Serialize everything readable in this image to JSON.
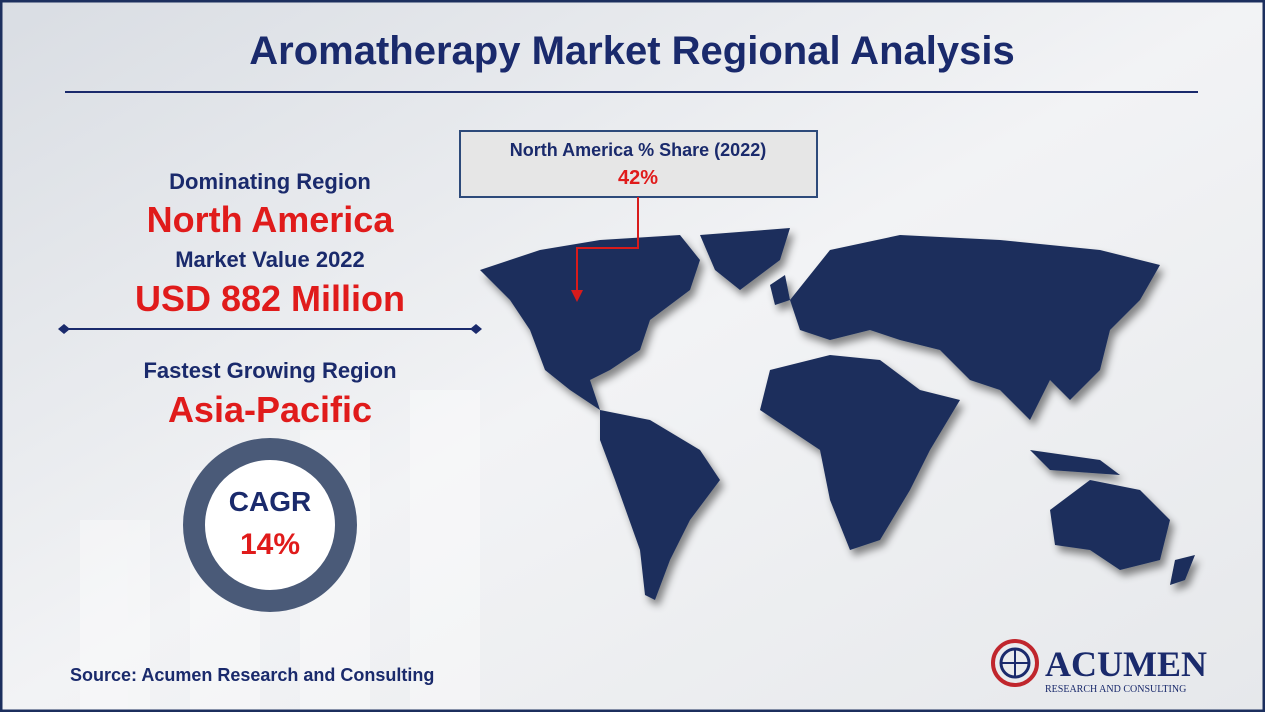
{
  "header": {
    "title": "Aromatherapy Market Regional Analysis"
  },
  "callout": {
    "label": "North America % Share (2022)",
    "value": "42%"
  },
  "left_panel": {
    "dominating_label": "Dominating Region",
    "dominating_region": "North America",
    "market_value_label": "Market Value 2022",
    "market_value": "USD 882 Million",
    "fastest_label": "Fastest Growing Region",
    "fastest_region": "Asia-Pacific",
    "cagr_label": "CAGR",
    "cagr_value": "14%"
  },
  "footer": {
    "source": "Source: Acumen Research and Consulting"
  },
  "logo": {
    "name": "ACUMEN",
    "tagline": "RESEARCH AND CONSULTING"
  }
}
